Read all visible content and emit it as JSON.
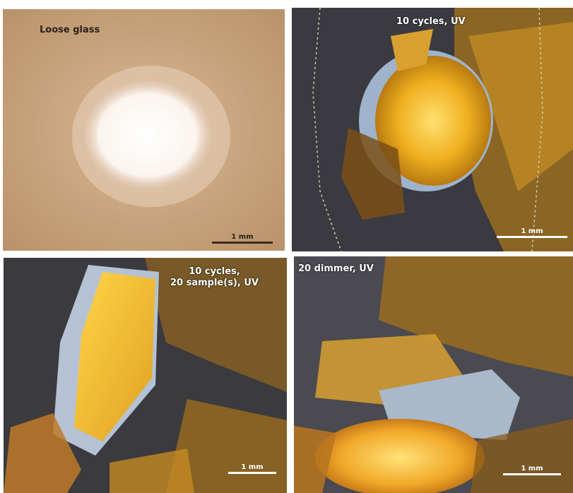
{
  "panels": [
    {
      "id": "p1",
      "label": "Loose glass",
      "scale": "1 mm"
    },
    {
      "id": "p2",
      "label": "10 cycles, UV",
      "scale": "1 mm"
    },
    {
      "id": "p3",
      "label": "10 cycles,\n20 sample(s), UV",
      "scale": "1 mm"
    },
    {
      "id": "p4",
      "label": "20 dimmer, UV",
      "scale": "1 mm"
    }
  ],
  "colors": {
    "beige_background": "#c8a47e",
    "dark_grey": "#3b3a3e",
    "amber": "#e0a020",
    "bright_yellow": "#ffd85a",
    "pale_blue": "#b9c6d6"
  }
}
